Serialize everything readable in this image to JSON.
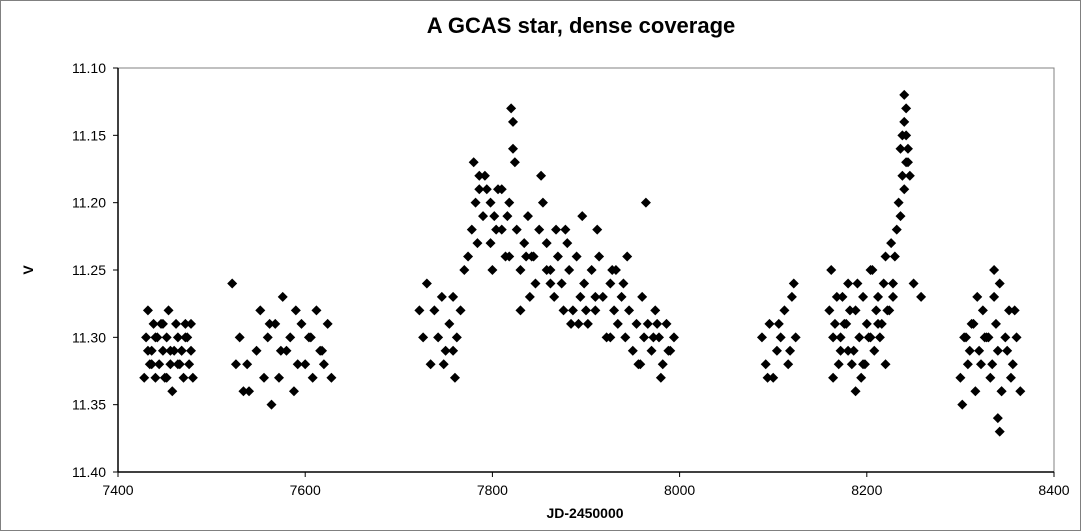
{
  "chart_data": {
    "type": "scatter",
    "title": "A GCAS star, dense coverage",
    "xlabel": "JD-2450000",
    "ylabel": "V",
    "xlim": [
      7400,
      8400
    ],
    "ylim": [
      11.1,
      11.4
    ],
    "y_inverted": true,
    "x_ticks": [
      "7400",
      "7600",
      "7800",
      "8000",
      "8200",
      "8400"
    ],
    "y_ticks": [
      "11.10",
      "11.15",
      "11.20",
      "11.25",
      "11.30",
      "11.35",
      "11.40"
    ],
    "grid": false,
    "marker": "diamond",
    "colors": {
      "marker": "#000000",
      "axis": "#000000",
      "border": "#808080",
      "plot_background": "#ffffff"
    },
    "series": [
      {
        "x": [
          7428,
          7430,
          7432,
          7434,
          7436,
          7438,
          7440,
          7442,
          7444,
          7446,
          7448,
          7450,
          7452,
          7454,
          7456,
          7458,
          7460,
          7462,
          7464,
          7466,
          7468,
          7470,
          7472,
          7474,
          7476,
          7478,
          7480,
          7432,
          7440,
          7448,
          7456,
          7464,
          7472,
          7478,
          7436,
          7452,
          7468,
          7522,
          7526,
          7530,
          7534,
          7538,
          7540,
          7548,
          7552,
          7556,
          7560,
          7564,
          7568,
          7572,
          7576,
          7580,
          7584,
          7588,
          7592,
          7596,
          7600,
          7604,
          7608,
          7612,
          7616,
          7620,
          7624,
          7628,
          7562,
          7574,
          7590,
          7606,
          7618,
          7722,
          7726,
          7730,
          7734,
          7738,
          7742,
          7746,
          7750,
          7754,
          7758,
          7762,
          7766,
          7770,
          7774,
          7778,
          7782,
          7786,
          7790,
          7794,
          7798,
          7802,
          7806,
          7810,
          7814,
          7818,
          7822,
          7826,
          7830,
          7834,
          7838,
          7842,
          7846,
          7850,
          7854,
          7858,
          7862,
          7866,
          7870,
          7874,
          7878,
          7882,
          7886,
          7890,
          7894,
          7898,
          7902,
          7906,
          7910,
          7914,
          7918,
          7922,
          7926,
          7930,
          7934,
          7938,
          7942,
          7946,
          7950,
          7954,
          7958,
          7962,
          7966,
          7970,
          7974,
          7978,
          7982,
          7986,
          7990,
          7994,
          7780,
          7786,
          7792,
          7798,
          7804,
          7810,
          7816,
          7820,
          7822,
          7824,
          7836,
          7852,
          7868,
          7880,
          7896,
          7912,
          7928,
          7944,
          7960,
          7976,
          7784,
          7800,
          7818,
          7840,
          7858,
          7876,
          7892,
          7910,
          7926,
          7940,
          7956,
          7972,
          7988,
          7748,
          7758,
          7760,
          7830,
          7844,
          7862,
          7884,
          7900,
          7932,
          7964,
          7980,
          8088,
          8092,
          8096,
          8100,
          8104,
          8108,
          8112,
          8116,
          8120,
          8124,
          8094,
          8106,
          8118,
          8122,
          8160,
          8164,
          8168,
          8172,
          8176,
          8180,
          8184,
          8188,
          8192,
          8196,
          8200,
          8204,
          8208,
          8212,
          8216,
          8220,
          8224,
          8228,
          8232,
          8236,
          8240,
          8244,
          8162,
          8170,
          8178,
          8186,
          8194,
          8202,
          8210,
          8218,
          8226,
          8234,
          8242,
          8166,
          8174,
          8182,
          8190,
          8198,
          8206,
          8214,
          8222,
          8230,
          8238,
          8236,
          8238,
          8240,
          8242,
          8244,
          8246,
          8240,
          8242,
          8164,
          8172,
          8180,
          8188,
          8196,
          8204,
          8212,
          8220,
          8228,
          8250,
          8258,
          8300,
          8304,
          8308,
          8312,
          8316,
          8320,
          8324,
          8328,
          8332,
          8336,
          8340,
          8344,
          8348,
          8352,
          8356,
          8360,
          8364,
          8302,
          8310,
          8318,
          8326,
          8334,
          8342,
          8350,
          8358,
          8306,
          8322,
          8338,
          8354,
          8340,
          8342,
          8344,
          8336,
          8314,
          8330
        ],
        "y": [
          11.33,
          11.3,
          11.28,
          11.32,
          11.31,
          11.29,
          11.33,
          11.3,
          11.32,
          11.29,
          11.31,
          11.33,
          11.3,
          11.28,
          11.32,
          11.34,
          11.31,
          11.29,
          11.3,
          11.32,
          11.31,
          11.33,
          11.29,
          11.3,
          11.32,
          11.31,
          11.33,
          11.31,
          11.3,
          11.29,
          11.31,
          11.32,
          11.3,
          11.29,
          11.32,
          11.33,
          11.31,
          11.26,
          11.32,
          11.3,
          11.34,
          11.32,
          11.34,
          11.31,
          11.28,
          11.33,
          11.3,
          11.35,
          11.29,
          11.33,
          11.27,
          11.31,
          11.3,
          11.34,
          11.32,
          11.29,
          11.32,
          11.3,
          11.33,
          11.28,
          11.31,
          11.32,
          11.29,
          11.33,
          11.29,
          11.31,
          11.28,
          11.3,
          11.31,
          11.28,
          11.3,
          11.26,
          11.32,
          11.28,
          11.3,
          11.27,
          11.31,
          11.29,
          11.27,
          11.3,
          11.28,
          11.25,
          11.24,
          11.22,
          11.2,
          11.18,
          11.21,
          11.19,
          11.23,
          11.21,
          11.19,
          11.22,
          11.24,
          11.2,
          11.16,
          11.22,
          11.25,
          11.23,
          11.21,
          11.24,
          11.26,
          11.22,
          11.2,
          11.23,
          11.25,
          11.27,
          11.24,
          11.26,
          11.22,
          11.25,
          11.28,
          11.24,
          11.27,
          11.26,
          11.29,
          11.25,
          11.28,
          11.24,
          11.27,
          11.3,
          11.26,
          11.28,
          11.29,
          11.27,
          11.3,
          11.28,
          11.31,
          11.29,
          11.32,
          11.3,
          11.29,
          11.31,
          11.28,
          11.3,
          11.32,
          11.29,
          11.31,
          11.3,
          11.17,
          11.19,
          11.18,
          11.2,
          11.22,
          11.19,
          11.21,
          11.13,
          11.14,
          11.17,
          11.24,
          11.18,
          11.22,
          11.23,
          11.21,
          11.22,
          11.25,
          11.24,
          11.27,
          11.29,
          11.23,
          11.25,
          11.24,
          11.27,
          11.25,
          11.28,
          11.29,
          11.27,
          11.3,
          11.26,
          11.32,
          11.3,
          11.31,
          11.32,
          11.31,
          11.33,
          11.28,
          11.24,
          11.26,
          11.29,
          11.28,
          11.25,
          11.2,
          11.33,
          11.3,
          11.32,
          11.29,
          11.33,
          11.31,
          11.3,
          11.28,
          11.32,
          11.27,
          11.3,
          11.33,
          11.29,
          11.31,
          11.26,
          11.28,
          11.3,
          11.27,
          11.31,
          11.29,
          11.26,
          11.32,
          11.28,
          11.3,
          11.27,
          11.29,
          11.25,
          11.31,
          11.27,
          11.29,
          11.24,
          11.28,
          11.26,
          11.22,
          11.21,
          11.19,
          11.17,
          11.25,
          11.32,
          11.29,
          11.31,
          11.33,
          11.3,
          11.28,
          11.26,
          11.23,
          11.2,
          11.15,
          11.29,
          11.27,
          11.28,
          11.26,
          11.32,
          11.25,
          11.3,
          11.28,
          11.24,
          11.18,
          11.16,
          11.15,
          11.14,
          11.13,
          11.16,
          11.18,
          11.12,
          11.17,
          11.33,
          11.3,
          11.31,
          11.34,
          11.32,
          11.3,
          11.29,
          11.32,
          11.27,
          11.26,
          11.27,
          11.33,
          11.3,
          11.32,
          11.29,
          11.34,
          11.31,
          11.28,
          11.3,
          11.33,
          11.27,
          11.31,
          11.34,
          11.3,
          11.28,
          11.32,
          11.3,
          11.34,
          11.35,
          11.31,
          11.27,
          11.3,
          11.32,
          11.26,
          11.31,
          11.28,
          11.3,
          11.32,
          11.29,
          11.33,
          11.36,
          11.37,
          11.34,
          11.25,
          11.29,
          11.3
        ]
      }
    ]
  }
}
